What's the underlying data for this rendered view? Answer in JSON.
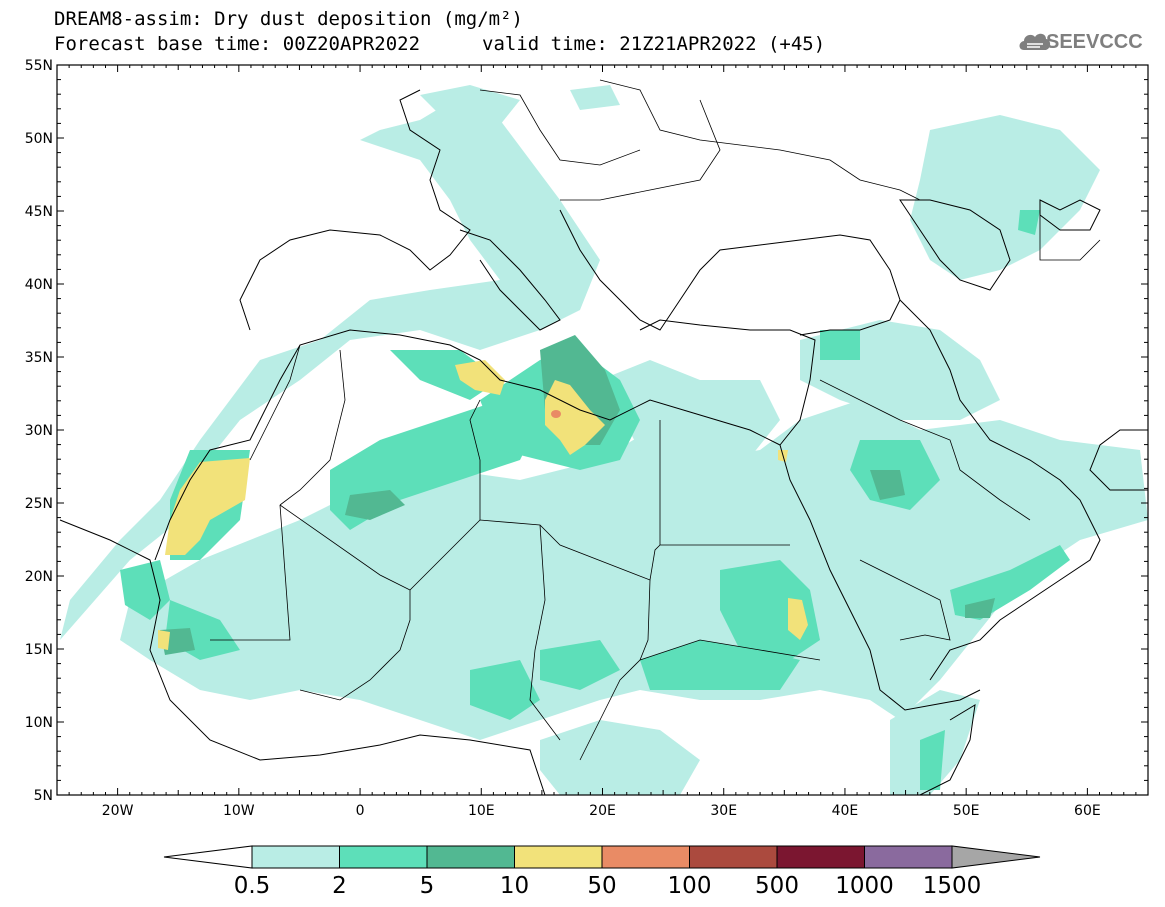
{
  "header": {
    "title": "DREAM8-assim: Dry dust deposition (mg/m²)",
    "base_time": "Forecast base time: 00Z20APR2022",
    "valid_time": "valid time: 21Z21APR2022 (+45)",
    "logo_text": "SEEVCCC"
  },
  "map": {
    "lon_range": [
      -25,
      65
    ],
    "lat_range": [
      5,
      55
    ],
    "lat_labels": [
      "55N",
      "50N",
      "45N",
      "40N",
      "35N",
      "30N",
      "25N",
      "20N",
      "15N",
      "10N",
      "5N"
    ],
    "lon_labels": [
      "20W",
      "10W",
      "0",
      "10E",
      "20E",
      "30E",
      "40E",
      "50E",
      "60E"
    ],
    "background_color": "#ffffff",
    "border_color": "#000000"
  },
  "colorbar": {
    "levels": [
      "0.5",
      "2",
      "5",
      "10",
      "50",
      "100",
      "500",
      "1000",
      "1500"
    ],
    "colors": [
      "#b9ede5",
      "#5ddfb9",
      "#52b892",
      "#f2e27a",
      "#e98b65",
      "#ab4a3e",
      "#7b1630",
      "#8a6a9e",
      "#a6a6a6"
    ],
    "under_color": "#ffffff"
  }
}
